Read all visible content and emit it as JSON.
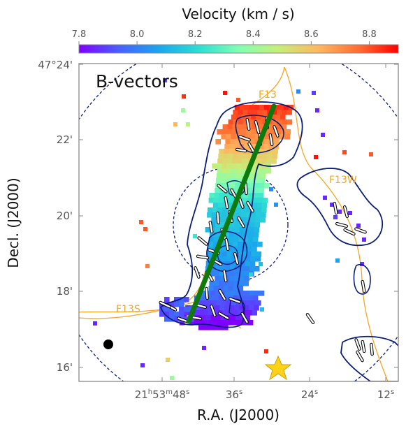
{
  "chart_data": {
    "type": "heatmap",
    "panel_label": "B-vectors",
    "colorbar": {
      "label": "Velocity (km / s)",
      "min": 7.8,
      "max": 8.9,
      "ticks": [
        "7.8",
        "8.0",
        "8.2",
        "8.4",
        "8.6",
        "8.8"
      ],
      "tick_values": [
        7.8,
        8.0,
        8.2,
        8.4,
        8.6,
        8.8
      ]
    },
    "xaxis": {
      "label": "R.A. (J2000)",
      "ticks": [
        {
          "h": "21",
          "m": "53",
          "s": "48"
        },
        {
          "s": "36"
        },
        {
          "s": "24"
        },
        {
          "s": "12"
        }
      ]
    },
    "yaxis": {
      "label": "Decl. (J2000)",
      "ticks": [
        "47°24'",
        "22'",
        "20'",
        "18'",
        "16'"
      ]
    },
    "annotations": [
      "F13",
      "F13W",
      "F13S"
    ],
    "colors": {
      "contour": "#0b1d7a",
      "filament": "#f5a623",
      "spine": "#0e7a0e",
      "star": "#ffd21a",
      "frame": "#888888"
    },
    "markers": [
      "beam-circle",
      "star"
    ]
  }
}
